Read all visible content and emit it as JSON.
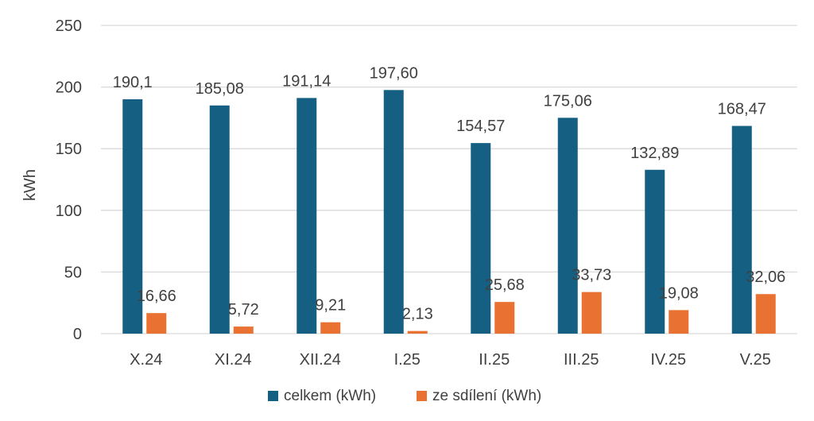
{
  "chart_data": {
    "type": "bar",
    "title": "",
    "xlabel": "",
    "ylabel": "kWh",
    "ylim": [
      0,
      250
    ],
    "yticks": [
      "0",
      "50",
      "100",
      "150",
      "200",
      "250"
    ],
    "ytick_values": [
      0,
      50,
      100,
      150,
      200,
      250
    ],
    "grid": true,
    "legend_position": "bottom",
    "categories": [
      "X.24",
      "XI.24",
      "XII.24",
      "I.25",
      "II.25",
      "III.25",
      "IV.25",
      "V.25"
    ],
    "series": [
      {
        "name": "celkem (kWh)",
        "color": "#156082",
        "values": [
          190.1,
          185.08,
          191.14,
          197.6,
          154.57,
          175.06,
          132.89,
          168.47
        ],
        "labels": [
          "190,1",
          "185,08",
          "191,14",
          "197,60",
          "154,57",
          "175,06",
          "132,89",
          "168,47"
        ]
      },
      {
        "name": "ze sdílení (kWh)",
        "color": "#e97132",
        "values": [
          16.66,
          5.72,
          9.21,
          2.13,
          25.68,
          33.73,
          19.08,
          32.06
        ],
        "labels": [
          "16,66",
          "5,72",
          "9,21",
          "2,13",
          "25,68",
          "33,73",
          "19,08",
          "32,06"
        ]
      }
    ]
  }
}
